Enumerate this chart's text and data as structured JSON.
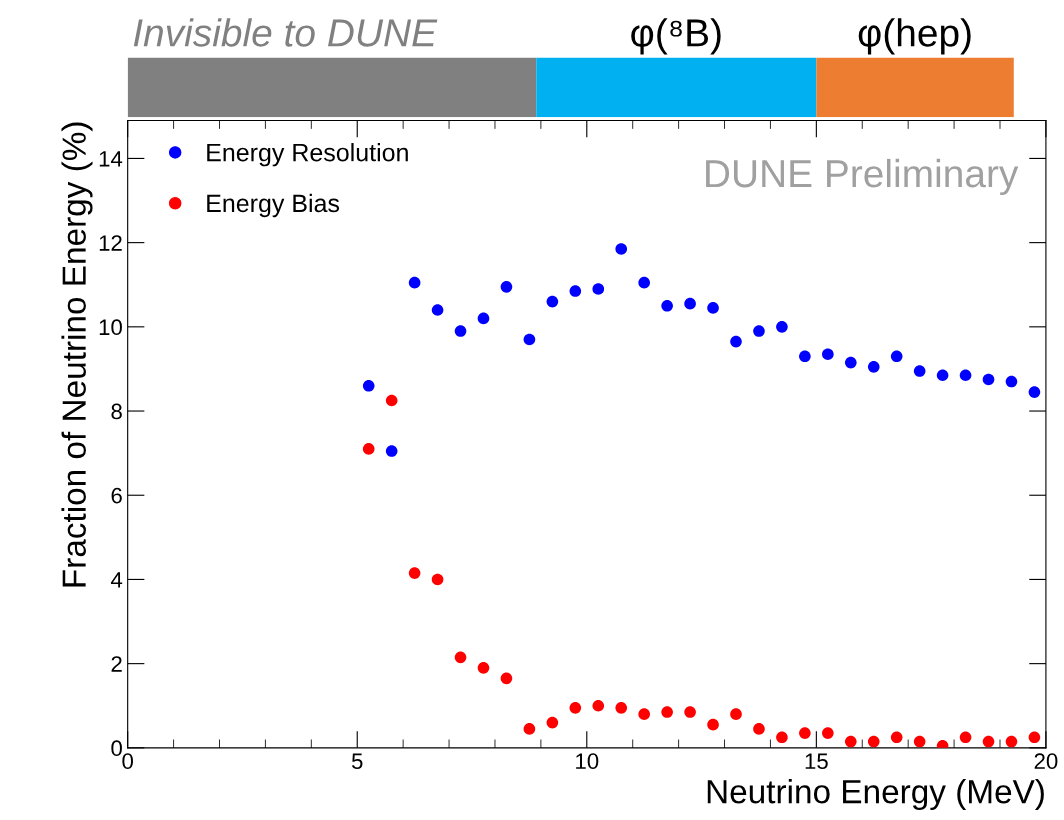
{
  "chart_data": [
    {
      "type": "bar",
      "orientation": "horizontal",
      "stacked": true,
      "categories": [
        null
      ],
      "xlim": [
        0,
        20
      ],
      "tick_labels": false,
      "series": [
        {
          "name": "Invisible to DUNE",
          "color": "#808080",
          "values": [
            8.9
          ]
        },
        {
          "name": "φ(⁸B)",
          "color": "#00b0f0",
          "values": [
            6.1
          ]
        },
        {
          "name": "φ(hep)",
          "color": "#ed7d31",
          "values": [
            4.3
          ]
        }
      ]
    },
    {
      "type": "scatter",
      "xlabel": "Neutrino Energy (MeV)",
      "ylabel": "Fraction of Neutrino Energy (%)",
      "xlim": [
        0,
        20
      ],
      "xticks": [
        0,
        5,
        10,
        15,
        20
      ],
      "ylim": [
        0,
        14.9
      ],
      "yticks": [
        0,
        2,
        4,
        6,
        8,
        10,
        12,
        14
      ],
      "x": [
        5.25,
        5.75,
        6.25,
        6.75,
        7.25,
        7.75,
        8.25,
        8.75,
        9.25,
        9.75,
        10.25,
        10.75,
        11.25,
        11.75,
        12.25,
        12.75,
        13.25,
        13.75,
        14.25,
        14.75,
        15.25,
        15.75,
        16.25,
        16.75,
        17.25,
        17.75,
        18.25,
        18.75,
        19.25,
        19.75
      ],
      "series": [
        {
          "name": "Energy Resolution",
          "color": "#0000ff",
          "values": [
            8.6,
            7.05,
            11.05,
            10.4,
            9.9,
            10.2,
            10.95,
            9.7,
            10.6,
            10.85,
            10.9,
            11.85,
            11.05,
            10.5,
            10.55,
            10.45,
            9.65,
            9.9,
            10.0,
            9.3,
            9.35,
            9.15,
            9.05,
            9.3,
            8.95,
            8.85,
            8.85,
            8.75,
            8.7,
            8.45
          ]
        },
        {
          "name": "Energy Bias",
          "color": "#ff0000",
          "values": [
            7.1,
            8.25,
            4.15,
            4.0,
            2.15,
            1.9,
            1.65,
            0.45,
            0.6,
            0.95,
            1.0,
            0.95,
            0.8,
            0.85,
            0.85,
            0.55,
            0.8,
            0.45,
            0.25,
            0.35,
            0.35,
            0.15,
            0.15,
            0.25,
            0.15,
            0.05,
            0.25,
            0.15,
            0.15,
            0.25
          ]
        }
      ],
      "marker": "circle",
      "grid": false,
      "legend": "top left",
      "annotations": [
        "DUNE Preliminary"
      ]
    }
  ]
}
